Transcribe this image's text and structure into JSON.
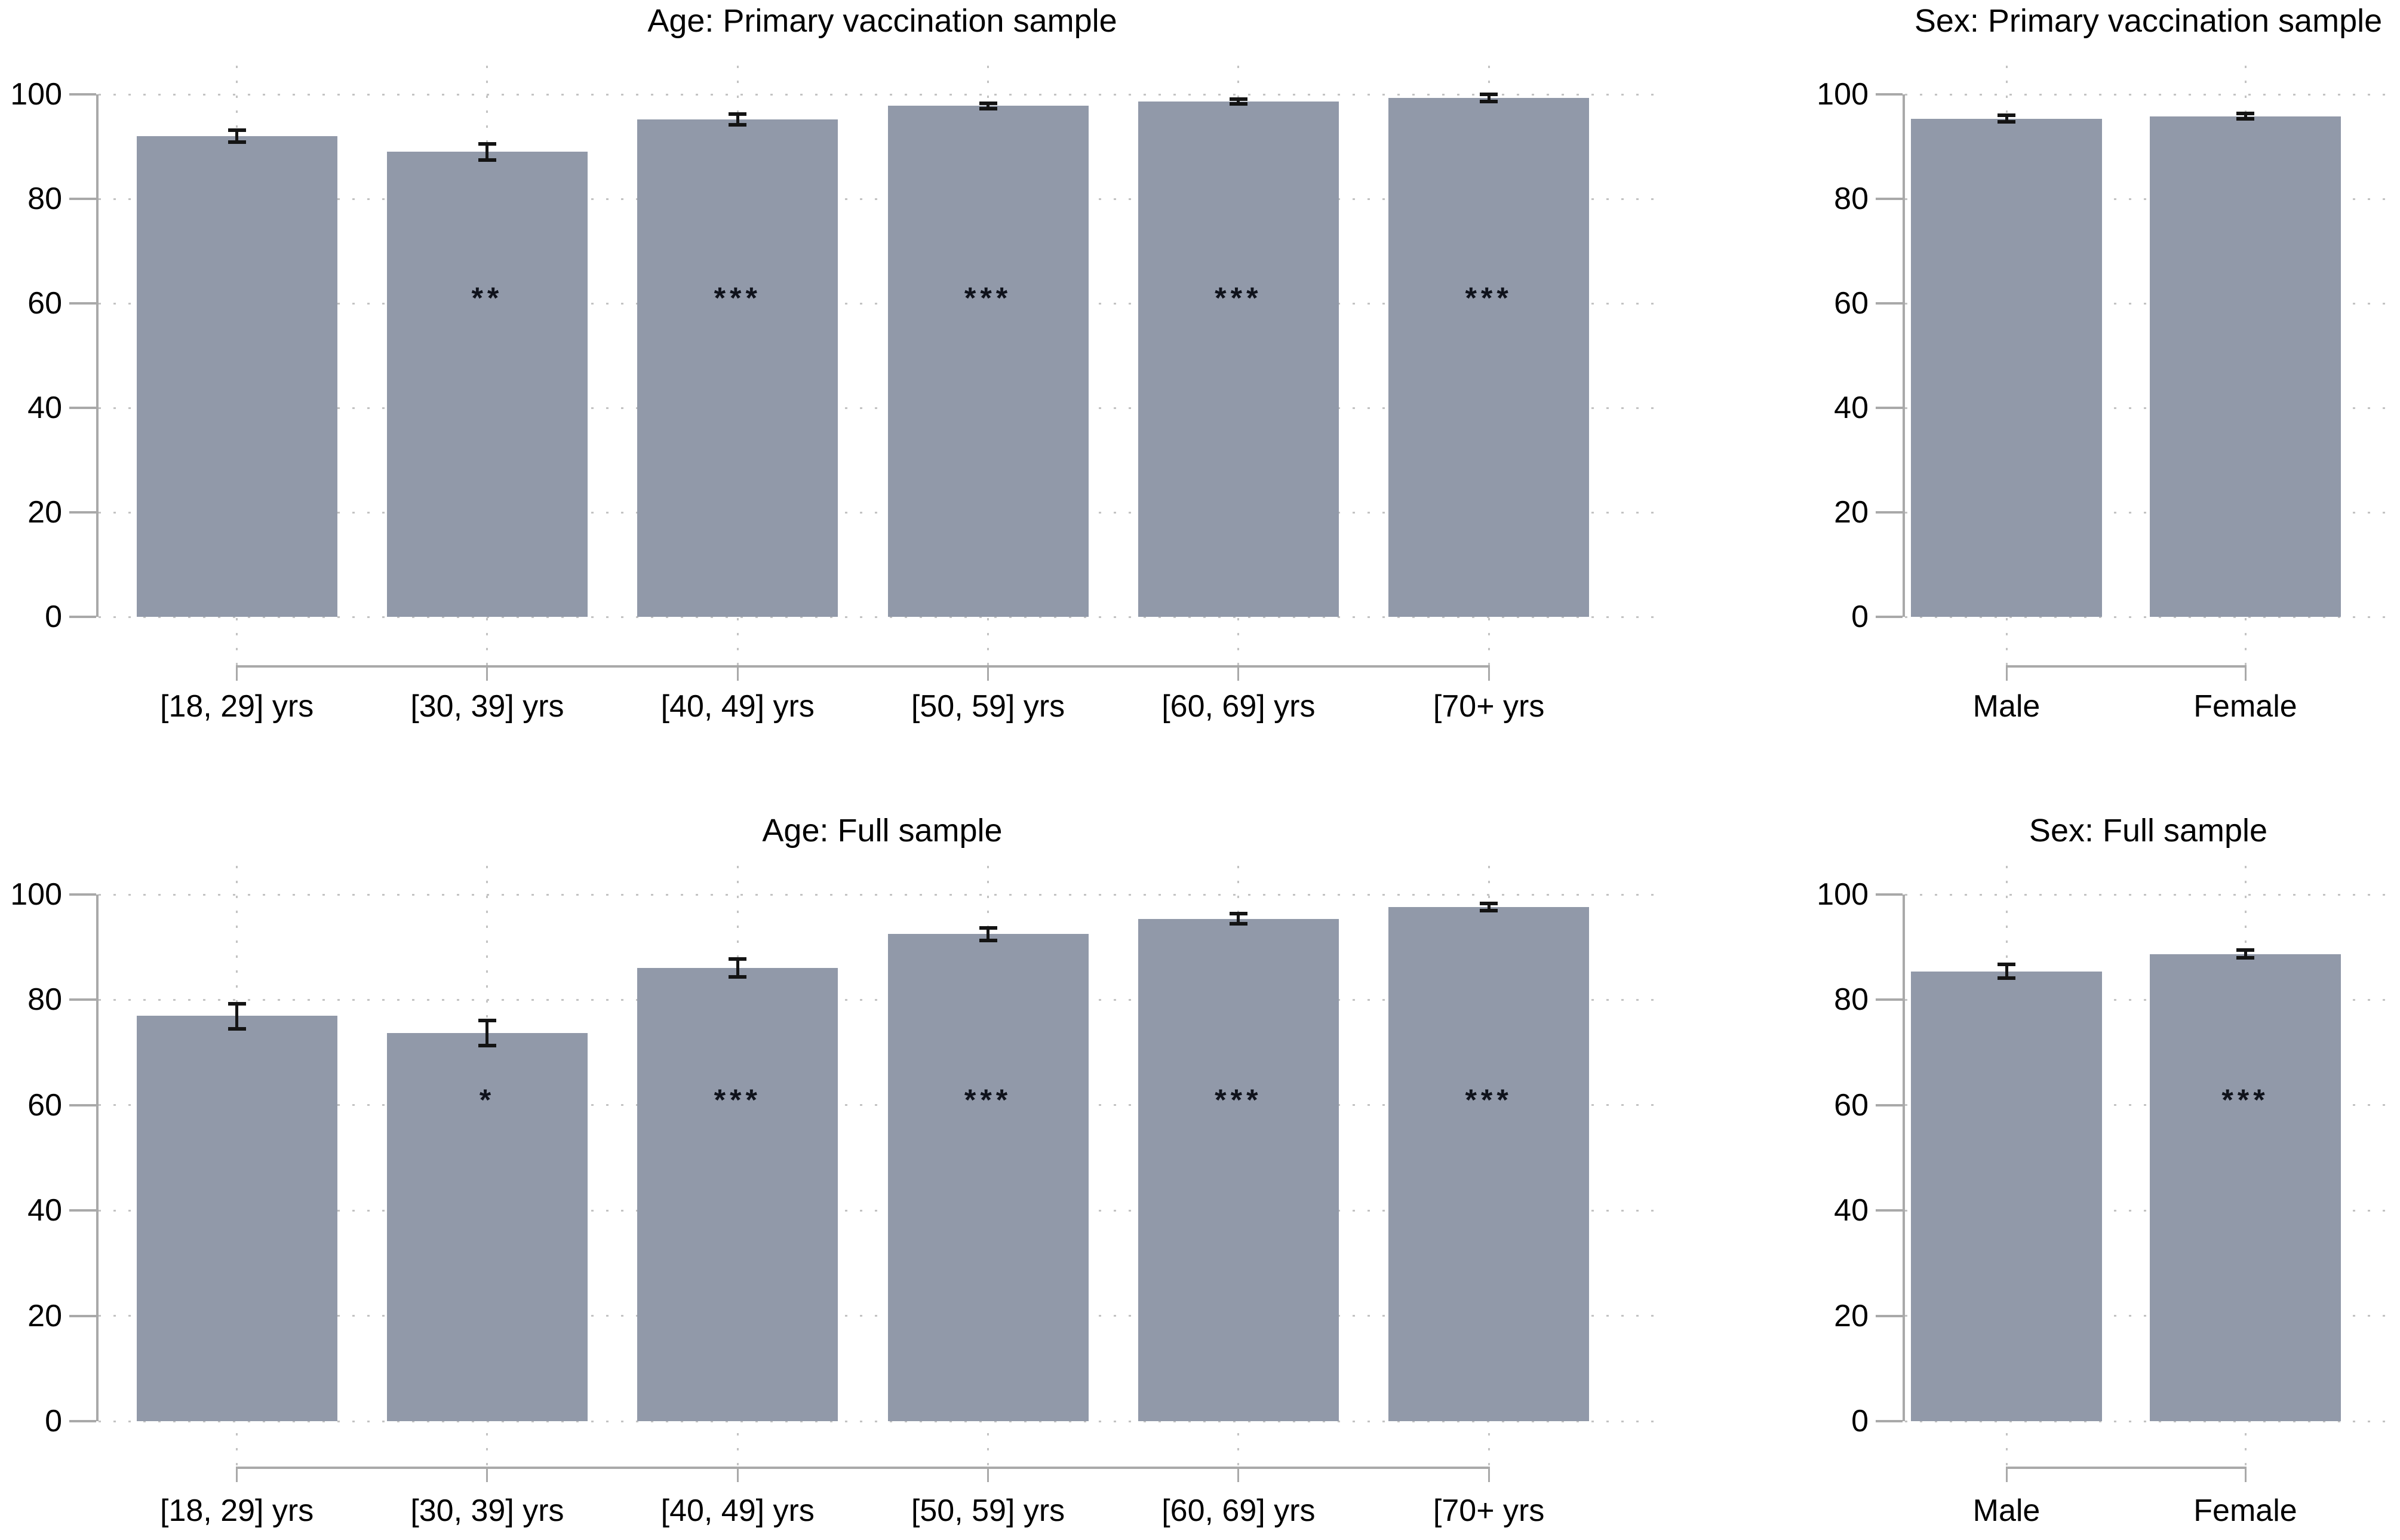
{
  "figure": {
    "background": "#ffffff",
    "colors": {
      "bar": "#9199A9",
      "error_bar": "#141414",
      "grid": "#c3c3c3",
      "axis": "#a9a9a9",
      "text": "#000000",
      "stars": "#10131c"
    }
  },
  "chart_data": [
    {
      "id": "age-primary",
      "type": "bar",
      "title": "Age: Primary vaccination sample",
      "categories": [
        "[18, 29] yrs",
        "[30, 39] yrs",
        "[40, 49] yrs",
        "[50, 59] yrs",
        "[60, 69] yrs",
        "[70+ yrs"
      ],
      "values": [
        92.0,
        89.0,
        95.2,
        97.8,
        98.6,
        99.3
      ],
      "ci_low": [
        90.9,
        87.4,
        94.2,
        97.3,
        98.2,
        98.6
      ],
      "ci_high": [
        93.2,
        90.5,
        96.2,
        98.3,
        99.1,
        100.0
      ],
      "significance": [
        "",
        "**",
        "***",
        "***",
        "***",
        "***"
      ],
      "sig_y": 61,
      "xlabel": "",
      "ylabel": "",
      "ylim": [
        0,
        100
      ],
      "yticks": [
        0,
        20,
        40,
        60,
        80,
        100
      ],
      "grid": "dotted",
      "legend": "none"
    },
    {
      "id": "sex-primary",
      "type": "bar",
      "title": "Sex: Primary vaccination sample",
      "categories": [
        "Male",
        "Female"
      ],
      "values": [
        95.3,
        95.8
      ],
      "ci_low": [
        94.7,
        95.3
      ],
      "ci_high": [
        96.0,
        96.3
      ],
      "significance": [
        "",
        ""
      ],
      "sig_y": 61,
      "xlabel": "",
      "ylabel": "",
      "ylim": [
        0,
        100
      ],
      "yticks": [
        0,
        20,
        40,
        60,
        80,
        100
      ],
      "grid": "dotted",
      "legend": "none"
    },
    {
      "id": "age-full",
      "type": "bar",
      "title": "Age: Full sample",
      "categories": [
        "[18, 29] yrs",
        "[30, 39] yrs",
        "[40, 49] yrs",
        "[50, 59] yrs",
        "[60, 69] yrs",
        "[70+ yrs"
      ],
      "values": [
        77.0,
        73.7,
        86.0,
        92.5,
        95.4,
        97.6
      ],
      "ci_low": [
        74.5,
        71.3,
        84.3,
        91.3,
        94.4,
        96.9
      ],
      "ci_high": [
        79.2,
        76.1,
        87.8,
        93.6,
        96.4,
        98.3
      ],
      "significance": [
        "",
        "*",
        "***",
        "***",
        "***",
        "***"
      ],
      "sig_y": 61,
      "xlabel": "",
      "ylabel": "",
      "ylim": [
        0,
        100
      ],
      "yticks": [
        0,
        20,
        40,
        60,
        80,
        100
      ],
      "grid": "dotted",
      "legend": "none"
    },
    {
      "id": "sex-full",
      "type": "bar",
      "title": "Sex: Full sample",
      "categories": [
        "Male",
        "Female"
      ],
      "values": [
        85.4,
        88.7
      ],
      "ci_low": [
        84.1,
        88.0
      ],
      "ci_high": [
        86.7,
        89.4
      ],
      "significance": [
        "",
        "***"
      ],
      "sig_y": 61,
      "xlabel": "",
      "ylabel": "",
      "ylim": [
        0,
        100
      ],
      "yticks": [
        0,
        20,
        40,
        60,
        80,
        100
      ],
      "grid": "dotted",
      "legend": "none"
    }
  ]
}
